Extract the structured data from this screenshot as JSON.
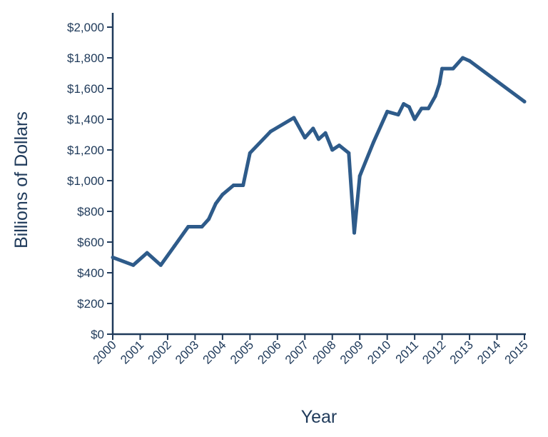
{
  "colors": {
    "line": "#2e5b8a",
    "axis": "#1f3a5a",
    "text": "#1f3a5a"
  },
  "chart_data": {
    "type": "line",
    "xlabel": "Year",
    "ylabel": "Billions of Dollars",
    "xlim": [
      2000,
      2015
    ],
    "ylim": [
      0,
      2000
    ],
    "grid": false,
    "legend": "none",
    "x_ticks": [
      "2000",
      "2001",
      "2002",
      "2003",
      "2004",
      "2005",
      "2006",
      "2007",
      "2008",
      "2009",
      "2010",
      "2011",
      "2012",
      "2013",
      "2014",
      "2015"
    ],
    "y_ticks": [
      "$0",
      "$200",
      "$400",
      "$600",
      "$800",
      "$1,000",
      "$1,200",
      "$1,400",
      "$1,600",
      "$1,800",
      "$2,000"
    ],
    "series": [
      {
        "x": [
          2000.0,
          2000.75,
          2001.25,
          2001.75,
          2002.25,
          2002.75,
          2003.25,
          2003.5,
          2003.75,
          2004.0,
          2004.4,
          2004.75,
          2005.0,
          2005.75,
          2006.6,
          2007.0,
          2007.3,
          2007.5,
          2007.75,
          2008.0,
          2008.25,
          2008.6,
          2008.8,
          2009.0,
          2009.5,
          2010.0,
          2010.4,
          2010.6,
          2010.8,
          2011.0,
          2011.25,
          2011.5,
          2011.75,
          2011.9,
          2012.0,
          2012.4,
          2012.75,
          2013.0,
          2015.0
        ],
        "values": [
          500,
          450,
          530,
          450,
          575,
          700,
          700,
          750,
          850,
          910,
          970,
          970,
          1180,
          1320,
          1410,
          1280,
          1340,
          1270,
          1310,
          1200,
          1230,
          1180,
          660,
          1030,
          1250,
          1450,
          1430,
          1500,
          1480,
          1400,
          1470,
          1470,
          1550,
          1630,
          1730,
          1730,
          1800,
          1780,
          1515
        ]
      }
    ]
  }
}
